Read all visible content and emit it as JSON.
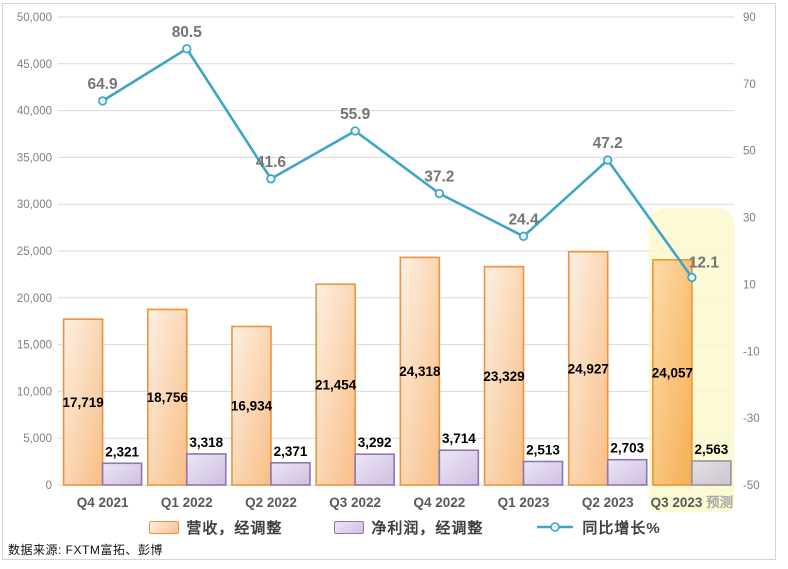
{
  "chart_data": {
    "type": "combo-bar-line",
    "categories": [
      "Q4 2021",
      "Q1 2022",
      "Q2 2022",
      "Q3 2022",
      "Q4 2022",
      "Q1 2023",
      "Q2 2023",
      "Q3 2023"
    ],
    "forecast": {
      "index": 7,
      "suffix": "预测",
      "highlight_color": "#FBF8CE"
    },
    "series": [
      {
        "name": "营收，经调整",
        "type": "bar",
        "axis": "left",
        "values": [
          17719,
          18756,
          16934,
          21454,
          24318,
          23329,
          24927,
          24057
        ],
        "labels": [
          "17,719",
          "18,756",
          "16,934",
          "21,454",
          "24,318",
          "23,329",
          "24,927",
          "24,057"
        ],
        "fill_from": "#FDF0E3",
        "fill_to": "#F8BE85",
        "stroke": "#F0913E",
        "forecast_fill_from": "#FCDCA9",
        "forecast_fill_to": "#F6AE54",
        "forecast_stroke": "#EC9435"
      },
      {
        "name": "净利润，经调整",
        "type": "bar",
        "axis": "left",
        "values": [
          2321,
          3318,
          2371,
          3292,
          3714,
          2513,
          2703,
          2563
        ],
        "labels": [
          "2,321",
          "3,318",
          "2,371",
          "3,292",
          "3,714",
          "2,513",
          "2,703",
          "2,563"
        ],
        "fill_from": "#ECE7F4",
        "fill_to": "#CFBEE2",
        "stroke": "#8E76B0",
        "forecast_fill_from": "#E6E0E7",
        "forecast_fill_to": "#CDC4CE",
        "forecast_stroke": "#99919C"
      },
      {
        "name": "同比增长%",
        "type": "line",
        "axis": "right",
        "values": [
          64.9,
          80.5,
          41.6,
          55.9,
          37.2,
          24.4,
          47.2,
          12.1
        ],
        "labels": [
          "64.9",
          "80.5",
          "41.6",
          "55.9",
          "37.2",
          "24.4",
          "47.2",
          "12.1"
        ],
        "stroke": "#3FA5C6",
        "marker_fill": "#EFF9FC"
      }
    ],
    "left_axis": {
      "min": 0,
      "max": 50000,
      "step": 5000,
      "ticks": [
        "50,000",
        "45,000",
        "40,000",
        "35,000",
        "30,000",
        "25,000",
        "20,000",
        "15,000",
        "10,000",
        "5,000",
        "0"
      ]
    },
    "right_axis": {
      "min": -50,
      "max": 90,
      "step": 20,
      "ticks": [
        "90",
        "70",
        "50",
        "30",
        "10",
        "-10",
        "-30",
        "-50"
      ]
    },
    "grid": true,
    "gridline_color": "#D9D9D9",
    "legend_position": "bottom",
    "label_colors": {
      "bar_value": "#000000",
      "line_value": "#757575",
      "axis_tick": "#7F7F7F",
      "x_label": "#595959",
      "forecast_suffix": "#A8A8A8"
    }
  },
  "legend": {
    "items": [
      {
        "label": "营收，经调整",
        "swatch": "bar-orange"
      },
      {
        "label": "净利润，经调整",
        "swatch": "bar-purple"
      },
      {
        "label": "同比增长%",
        "swatch": "line-teal"
      }
    ]
  },
  "source_note": "数据来源: FXTM富拓、彭博"
}
